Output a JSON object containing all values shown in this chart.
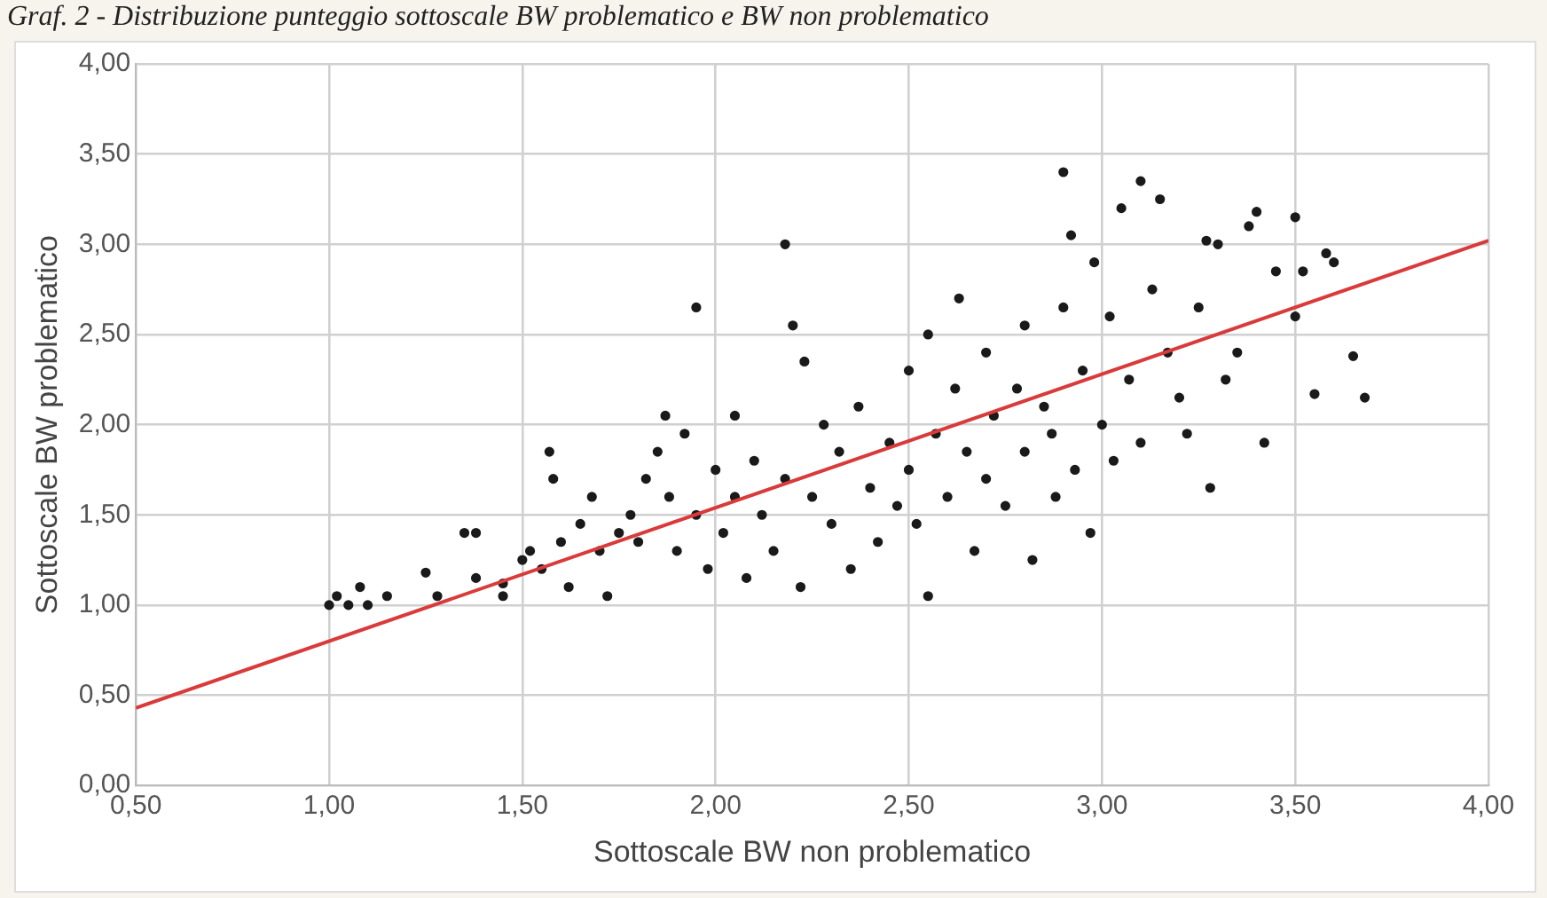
{
  "chart_data": {
    "type": "scatter",
    "title": "Graf. 2 - Distribuzione punteggio sottoscale BW problematico e BW non problematico",
    "xlabel": "Sottoscale BW non problematico",
    "ylabel": "Sottoscale BW problematico",
    "xlim": [
      0.5,
      4.0
    ],
    "ylim": [
      0,
      4.0
    ],
    "xticks": [
      {
        "value": 0.5,
        "label": "0,50"
      },
      {
        "value": 1.0,
        "label": "1,00"
      },
      {
        "value": 1.5,
        "label": "1,50"
      },
      {
        "value": 2.0,
        "label": "2,00"
      },
      {
        "value": 2.5,
        "label": "2,50"
      },
      {
        "value": 3.0,
        "label": "3,00"
      },
      {
        "value": 3.5,
        "label": "3,50"
      },
      {
        "value": 4.0,
        "label": "4,00"
      }
    ],
    "yticks": [
      {
        "value": 0,
        "label": "0,00"
      },
      {
        "value": 0.5,
        "label": "0,50"
      },
      {
        "value": 1.0,
        "label": "1,00"
      },
      {
        "value": 1.5,
        "label": "1,50"
      },
      {
        "value": 2.0,
        "label": "2,00"
      },
      {
        "value": 2.5,
        "label": "2,50"
      },
      {
        "value": 3.0,
        "label": "3,00"
      },
      {
        "value": 3.5,
        "label": "3,50"
      },
      {
        "value": 4.0,
        "label": "4,00"
      }
    ],
    "grid": true,
    "legend": false,
    "series": [
      {
        "color": "#1a1a1a",
        "marker": "circle",
        "x": [
          1.0,
          1.02,
          1.05,
          1.08,
          1.1,
          1.15,
          1.25,
          1.28,
          1.35,
          1.38,
          1.38,
          1.45,
          1.45,
          1.5,
          1.52,
          1.55,
          1.57,
          1.58,
          1.6,
          1.62,
          1.65,
          1.68,
          1.7,
          1.72,
          1.75,
          1.78,
          1.8,
          1.82,
          1.85,
          1.87,
          1.88,
          1.9,
          1.92,
          1.95,
          1.95,
          1.98,
          2.0,
          2.02,
          2.05,
          2.05,
          2.08,
          2.1,
          2.12,
          2.15,
          2.18,
          2.18,
          2.2,
          2.22,
          2.23,
          2.25,
          2.28,
          2.3,
          2.32,
          2.35,
          2.37,
          2.4,
          2.42,
          2.45,
          2.47,
          2.5,
          2.5,
          2.52,
          2.55,
          2.55,
          2.57,
          2.6,
          2.62,
          2.63,
          2.65,
          2.67,
          2.7,
          2.7,
          2.72,
          2.75,
          2.78,
          2.8,
          2.8,
          2.82,
          2.85,
          2.87,
          2.88,
          2.9,
          2.9,
          2.92,
          2.93,
          2.95,
          2.97,
          2.98,
          3.0,
          3.02,
          3.03,
          3.05,
          3.07,
          3.1,
          3.1,
          3.13,
          3.15,
          3.17,
          3.2,
          3.22,
          3.25,
          3.27,
          3.28,
          3.3,
          3.32,
          3.35,
          3.38,
          3.4,
          3.42,
          3.45,
          3.5,
          3.5,
          3.52,
          3.55,
          3.58,
          3.6,
          3.65,
          3.68
        ],
        "values": [
          1.0,
          1.05,
          1.0,
          1.1,
          1.0,
          1.05,
          1.18,
          1.05,
          1.4,
          1.4,
          1.15,
          1.05,
          1.12,
          1.25,
          1.3,
          1.2,
          1.85,
          1.7,
          1.35,
          1.1,
          1.45,
          1.6,
          1.3,
          1.05,
          1.4,
          1.5,
          1.35,
          1.7,
          1.85,
          2.05,
          1.6,
          1.3,
          1.95,
          2.65,
          1.5,
          1.2,
          1.75,
          1.4,
          2.05,
          1.6,
          1.15,
          1.8,
          1.5,
          1.3,
          3.0,
          1.7,
          2.55,
          1.1,
          2.35,
          1.6,
          2.0,
          1.45,
          1.85,
          1.2,
          2.1,
          1.65,
          1.35,
          1.9,
          1.55,
          2.3,
          1.75,
          1.45,
          2.5,
          1.05,
          1.95,
          1.6,
          2.2,
          2.7,
          1.85,
          1.3,
          2.4,
          1.7,
          2.05,
          1.55,
          2.2,
          2.55,
          1.85,
          1.25,
          2.1,
          1.95,
          1.6,
          3.4,
          2.65,
          3.05,
          1.75,
          2.3,
          1.4,
          2.9,
          2.0,
          2.6,
          1.8,
          3.2,
          2.25,
          3.35,
          1.9,
          2.75,
          3.25,
          2.4,
          2.15,
          1.95,
          2.65,
          3.02,
          1.65,
          3.0,
          2.25,
          2.4,
          3.1,
          3.18,
          1.9,
          2.85,
          3.15,
          2.6,
          2.85,
          2.17,
          2.95,
          2.9,
          2.38,
          2.15
        ]
      },
      {
        "type": "line",
        "color": "#d93a3a",
        "x": [
          0.5,
          4.0
        ],
        "values": [
          0.43,
          3.02
        ]
      }
    ]
  }
}
